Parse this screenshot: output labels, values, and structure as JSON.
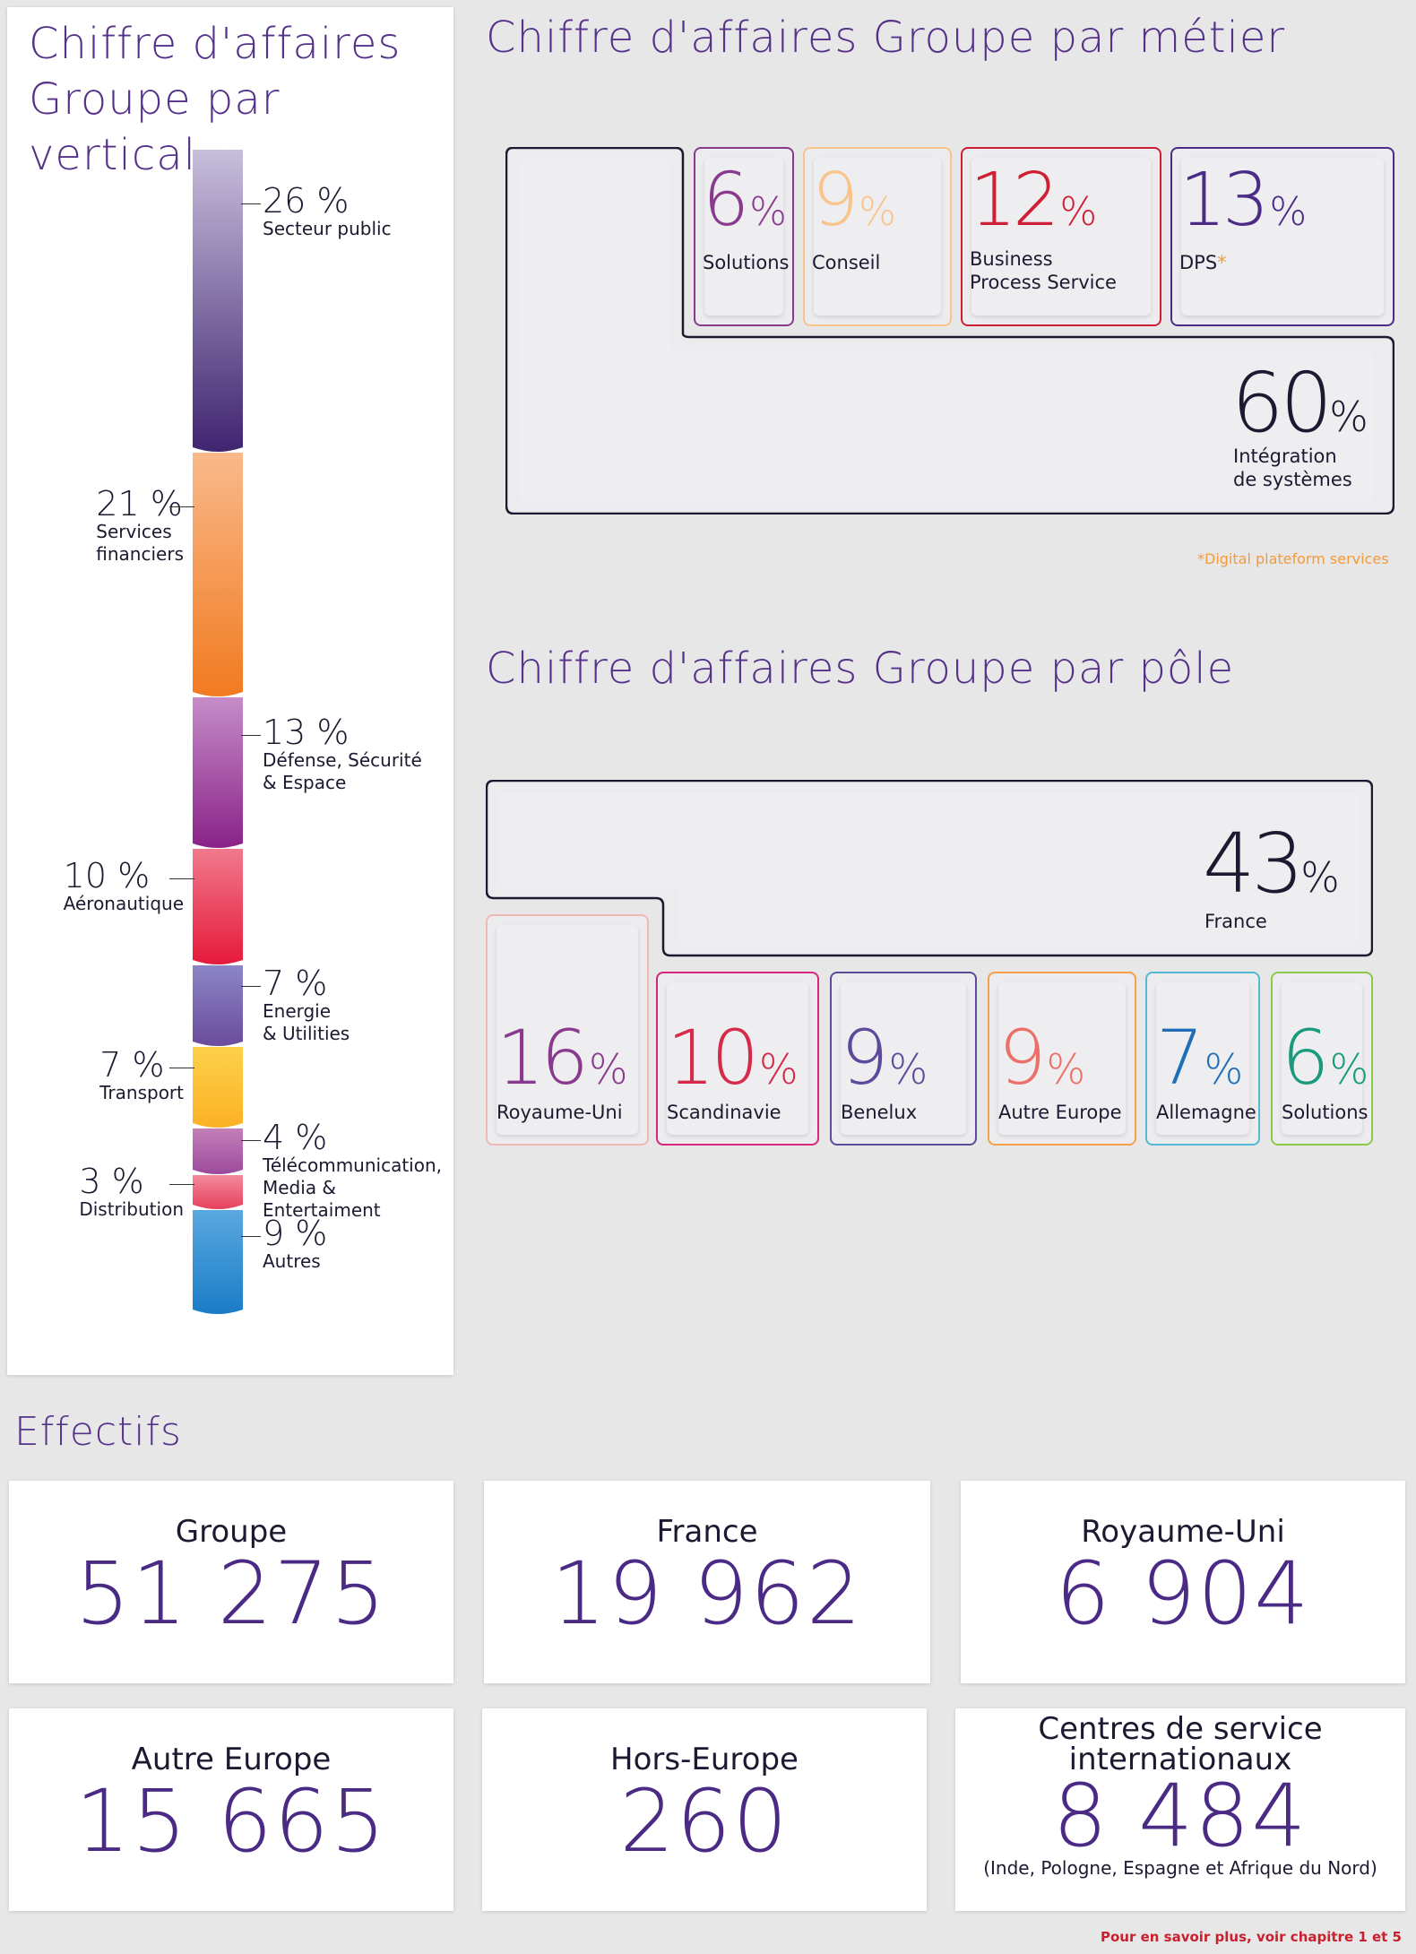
{
  "vertical": {
    "title_line1": "Chiffre d'affaires",
    "title_line2": "Groupe par vertical",
    "chart_data": {
      "type": "bar",
      "stacked": true,
      "title": "Chiffre d'affaires Groupe par vertical",
      "categories": [
        "Secteur public",
        "Services financiers",
        "Défense, Sécurité & Espace",
        "Aéronautique",
        "Energie & Utilities",
        "Transport",
        "Télécommunication, Media & Entertaiment",
        "Distribution",
        "Autres"
      ],
      "values": [
        26,
        21,
        13,
        10,
        7,
        7,
        4,
        3,
        9
      ],
      "labels": [
        "26 %",
        "21 %",
        "13 %",
        "10 %",
        "7 %",
        "7 %",
        "4 %",
        "3 %",
        "9 %"
      ],
      "display_names": [
        "Secteur public",
        "Services\nfinanciers",
        "Défense, Sécurité\n& Espace",
        "Aéronautique",
        "Energie\n& Utilities",
        "Transport",
        "Télécommunication,\nMedia &\nEntertaiment",
        "Distribution",
        "Autres"
      ],
      "colors": [
        [
          "#c8bfdc",
          "#3f2470"
        ],
        [
          "#f9b98a",
          "#f17a20"
        ],
        [
          "#c58cc8",
          "#8a2288"
        ],
        [
          "#f17a8c",
          "#e5193b"
        ],
        [
          "#8c86c6",
          "#6a4c9c"
        ],
        [
          "#fdd04a",
          "#fbb125"
        ],
        [
          "#c47fb8",
          "#9b4a9c"
        ],
        [
          "#f48a9c",
          "#e5405c"
        ],
        [
          "#5aa8e0",
          "#1a7cc6"
        ]
      ],
      "sides": [
        "right",
        "left",
        "right",
        "left",
        "right",
        "left",
        "right",
        "left",
        "right"
      ]
    }
  },
  "metier": {
    "title": "Chiffre d'affaires Groupe par métier",
    "footnote": "*Digital plateform services",
    "chart_data": {
      "type": "table",
      "items": [
        {
          "name": "Solutions",
          "value": 6,
          "pct": "%",
          "color": "#8a3a8e"
        },
        {
          "name": "Conseil",
          "value": 9,
          "pct": "%",
          "color": "#f9c48c"
        },
        {
          "name": "Business\nProcess Service",
          "value": 12,
          "pct": "%",
          "color": "#cf1f34"
        },
        {
          "name": "DPS",
          "asterisk": "*",
          "value": 13,
          "pct": "%",
          "color": "#4b2b88"
        },
        {
          "name": "Intégration\nde systèmes",
          "value": 60,
          "pct": "%",
          "color": "#1e1830"
        }
      ]
    }
  },
  "pole": {
    "title": "Chiffre d'affaires Groupe par pôle",
    "chart_data": {
      "type": "table",
      "items": [
        {
          "name": "France",
          "value": 43,
          "pct": "%",
          "color": "#1e1830",
          "number_color": "#1e1830"
        },
        {
          "name": "Royaume-Uni",
          "value": 16,
          "pct": "%",
          "color": "#f0b8b4",
          "number_color": "#8a3a8e"
        },
        {
          "name": "Scandinavie",
          "value": 10,
          "pct": "%",
          "color": "#d6287a",
          "number_color": "#d52a4a"
        },
        {
          "name": "Benelux",
          "value": 9,
          "pct": "%",
          "color": "#5e4a9a",
          "number_color": "#5e4a9a"
        },
        {
          "name": "Autre Europe",
          "value": 9,
          "pct": "%",
          "color": "#f5a04a",
          "number_color": "#ea7068"
        },
        {
          "name": "Allemagne",
          "value": 7,
          "pct": "%",
          "color": "#55b8d4",
          "number_color": "#1f6fb8"
        },
        {
          "name": "Solutions",
          "value": 6,
          "pct": "%",
          "color": "#8cc84a",
          "number_color": "#1a9a7c"
        }
      ]
    }
  },
  "effectifs": {
    "title": "Effectifs",
    "cards": [
      {
        "name": "Groupe",
        "value": "51 275"
      },
      {
        "name": "France",
        "value": "19 962"
      },
      {
        "name": "Royaume-Uni",
        "value": "6 904"
      },
      {
        "name": "Autre Europe",
        "value": "15 665"
      },
      {
        "name": "Hors-Europe",
        "value": "260"
      },
      {
        "name": "Centres de service\ninternationaux",
        "value": "8 484",
        "note": "(Inde, Pologne, Espagne et Afrique du Nord)"
      }
    ],
    "footer": "Pour en savoir plus, voir chapitre 1 et 5"
  }
}
